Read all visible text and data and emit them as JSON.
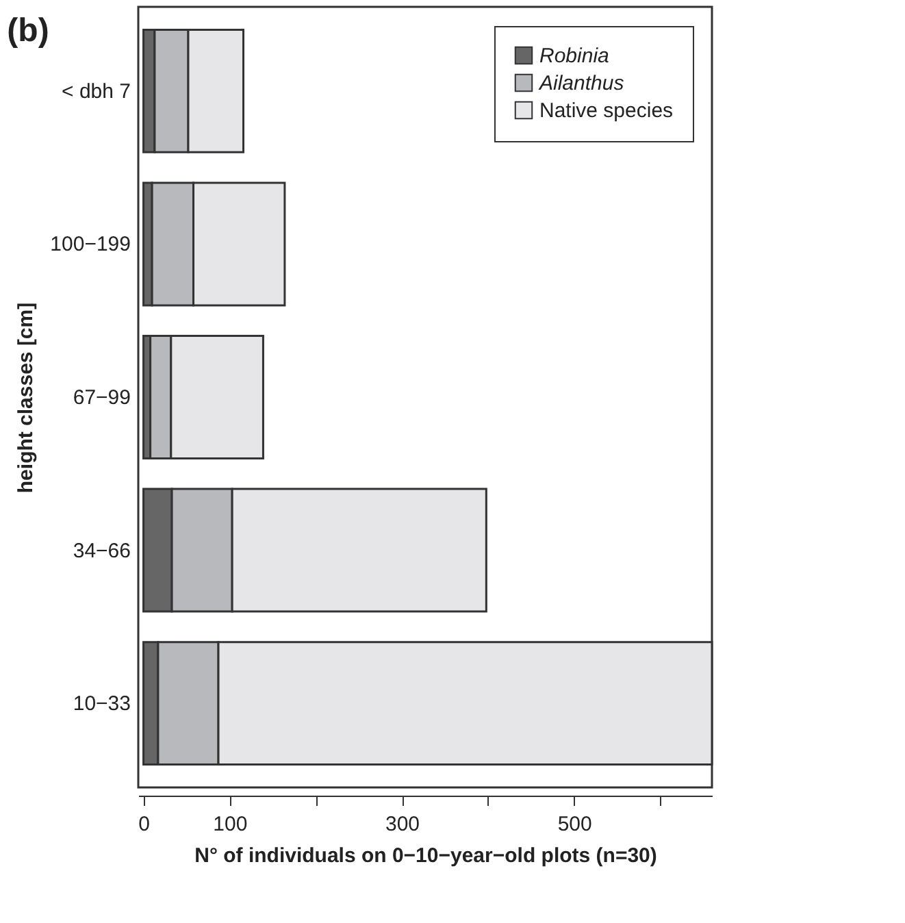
{
  "chart_data": {
    "type": "bar",
    "orientation": "horizontal",
    "stacked": true,
    "title": "(b)",
    "xlabel": "N° of individuals on 0−10−year−old plots (n=30)",
    "ylabel": "height classes [cm]",
    "categories": [
      "< dbh 7",
      "100−199",
      "67−99",
      "34−66",
      "10−33"
    ],
    "series": [
      {
        "name": "Robinia",
        "color": "#666666",
        "values": [
          13,
          10,
          8,
          33,
          17
        ]
      },
      {
        "name": "Ailanthus",
        "color": "#b8b9bc",
        "values": [
          39,
          48,
          24,
          70,
          70
        ]
      },
      {
        "name": "Native species",
        "color": "#e6e6e8",
        "values": [
          64,
          106,
          107,
          295,
          573
        ]
      }
    ],
    "xlim": [
      -6,
      660
    ],
    "xticks": [
      0,
      100,
      {
        "value": 200,
        "label": null
      },
      300,
      {
        "value": 400,
        "label": null
      },
      500,
      {
        "value": 600,
        "label": null
      }
    ],
    "grid": false,
    "legend": "top right"
  }
}
